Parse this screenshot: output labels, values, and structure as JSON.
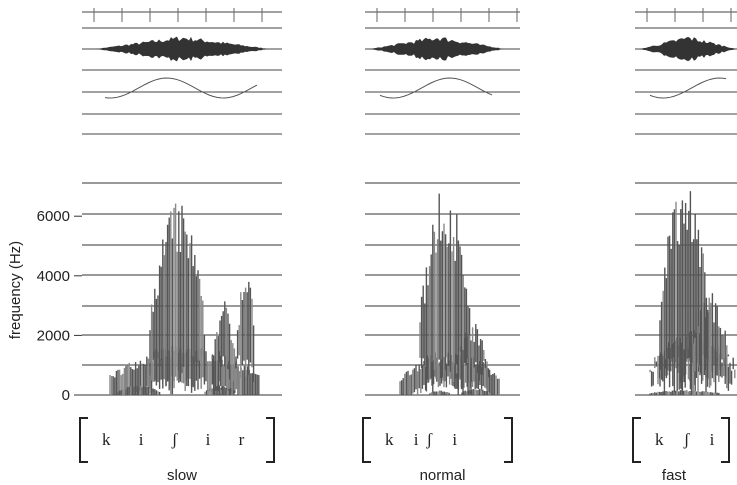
{
  "y_axis": {
    "label": "frequency (Hz)",
    "ticks": [
      0,
      2000,
      4000,
      6000
    ]
  },
  "panels": [
    {
      "transcription": "k i ʃ i r",
      "label": "slow"
    },
    {
      "transcription": "k iʃ i",
      "label": "normal"
    },
    {
      "transcription": "k ʃ i",
      "label": "fast"
    }
  ]
}
